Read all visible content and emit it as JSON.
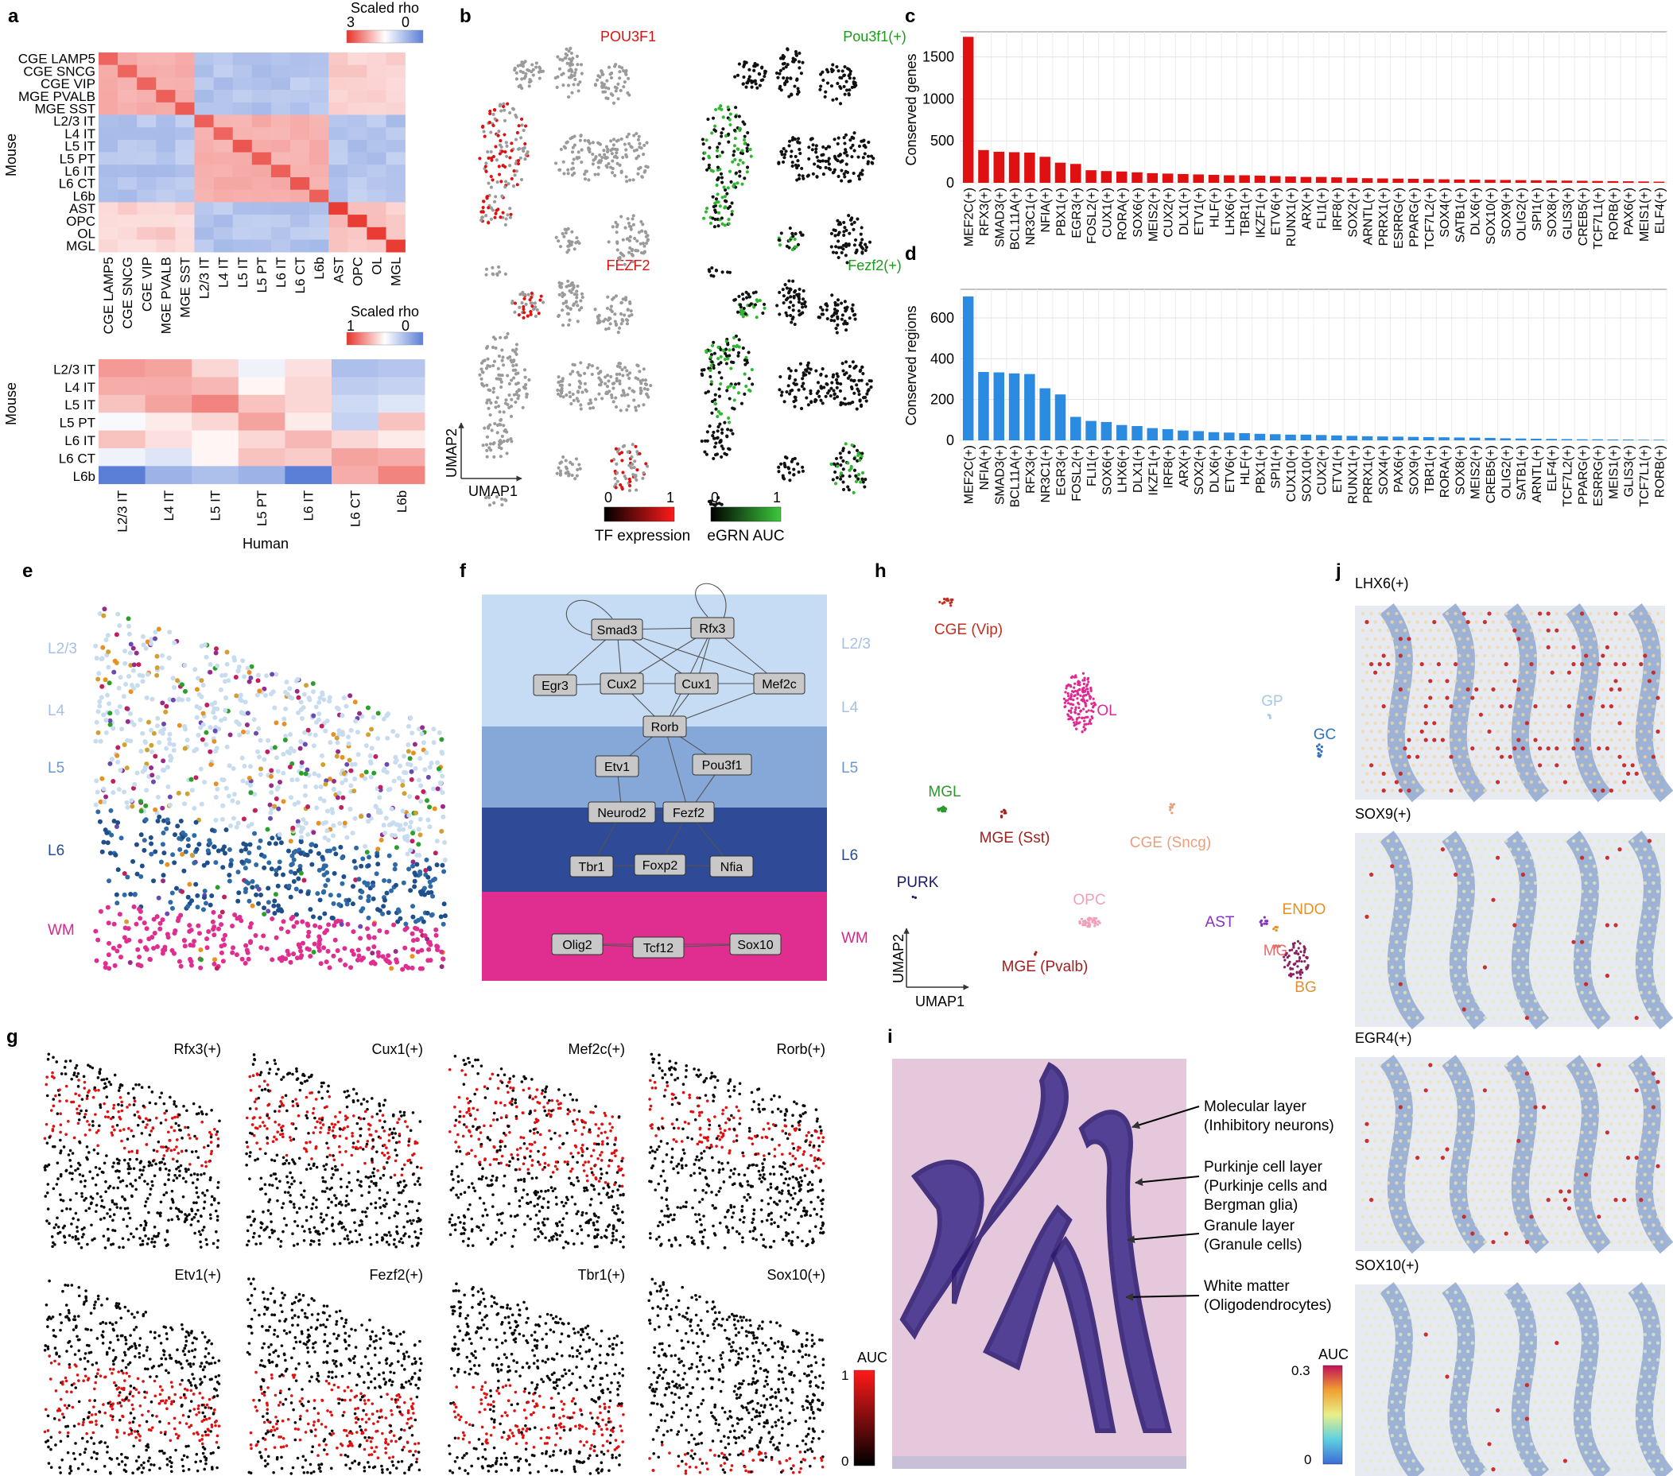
{
  "panels": {
    "a": {
      "letter": "a",
      "colorbar1": {
        "title": "Scaled rho",
        "max": "3",
        "min": "0"
      },
      "colorbar2": {
        "title": "Scaled rho",
        "max": "1",
        "min": "0"
      },
      "rows1": [
        "CGE LAMP5",
        "CGE SNCG",
        "CGE VIP",
        "MGE PVALB",
        "MGE SST",
        "L2/3 IT",
        "L4 IT",
        "L5 IT",
        "L5 PT",
        "L6 IT",
        "L6 CT",
        "L6b",
        "AST",
        "OPC",
        "OL",
        "MGL"
      ],
      "cols1": [
        "CGE LAMP5",
        "CGE SNCG",
        "CGE VIP",
        "MGE PVALB",
        "MGE SST",
        "L2/3 IT",
        "L4 IT",
        "L5 IT",
        "L5 PT",
        "L6 IT",
        "L6 CT",
        "L6b",
        "AST",
        "OPC",
        "OL",
        "MGL"
      ],
      "rows2": [
        "L2/3 IT",
        "L4 IT",
        "L5 IT",
        "L5 PT",
        "L6 IT",
        "L6 CT",
        "L6b"
      ],
      "cols2": [
        "L2/3 IT",
        "L4 IT",
        "L5 IT",
        "L5 PT",
        "L6 IT",
        "L6 CT",
        "L6b"
      ],
      "ylabel": "Mouse",
      "xlabel": "Human"
    },
    "b": {
      "letter": "b",
      "titles": [
        "POU3F1",
        "Pou3f1(+)",
        "FEZF2",
        "Fezf2(+)"
      ],
      "umap_x": "UMAP1",
      "umap_y": "UMAP2",
      "legend1": {
        "min": "0",
        "max": "1",
        "label": "TF expression"
      },
      "legend2": {
        "min": "0",
        "max": "1",
        "label": "eGRN AUC"
      }
    },
    "c": {
      "letter": "c",
      "ylabel": "Conserved genes",
      "yticks": [
        "0",
        "500",
        "1000",
        "1500"
      ]
    },
    "d": {
      "letter": "d",
      "ylabel": "Conserved regions",
      "yticks": [
        "0",
        "200",
        "400",
        "600"
      ]
    },
    "e": {
      "letter": "e",
      "layers": [
        "L2/3",
        "L4",
        "L5",
        "L6",
        "WM"
      ]
    },
    "f": {
      "letter": "f",
      "layers": [
        "L2/3",
        "L4",
        "L5",
        "L6",
        "WM"
      ],
      "nodes": [
        "Smad3",
        "Rfx3",
        "Egr3",
        "Cux2",
        "Cux1",
        "Mef2c",
        "Rorb",
        "Etv1",
        "Pou3f1",
        "Neurod2",
        "Fezf2",
        "Tbr1",
        "Foxp2",
        "Nfia",
        "Olig2",
        "Tcf12",
        "Sox10"
      ]
    },
    "g": {
      "letter": "g",
      "titles": [
        "Rfx3(+)",
        "Cux1(+)",
        "Mef2c(+)",
        "Rorb(+)",
        "Etv1(+)",
        "Fezf2(+)",
        "Tbr1(+)",
        "Sox10(+)"
      ],
      "legend": {
        "title": "AUC",
        "max": "1",
        "min": "0"
      }
    },
    "h": {
      "letter": "h",
      "labels": [
        "CGE (Vip)",
        "OL",
        "GP",
        "GC",
        "MGL",
        "MGE (Sst)",
        "CGE (Sncg)",
        "PURK",
        "OPC",
        "AST",
        "ENDO",
        "MG",
        "BG",
        "MGE (Pvalb)"
      ],
      "umap_x": "UMAP1",
      "umap_y": "UMAP2"
    },
    "i": {
      "letter": "i",
      "annotations": [
        "Molecular layer",
        "(Inhibitory neurons)",
        "Purkinje cell layer",
        "(Purkinje cells and",
        "Bergman glia)",
        "Granule layer",
        "(Granule cells)",
        "White matter",
        "(Oligodendrocytes)"
      ]
    },
    "j": {
      "letter": "j",
      "titles": [
        "LHX6(+)",
        "SOX9(+)",
        "EGR4(+)",
        "SOX10(+)"
      ],
      "legend": {
        "title": "AUC",
        "max": "0.3",
        "min": "0"
      }
    }
  },
  "chart_data": [
    {
      "type": "bar",
      "panel": "c",
      "title": "",
      "ylabel": "Conserved genes",
      "ylim": [
        0,
        1800
      ],
      "color": "#e01010",
      "categories": [
        "MEF2C(+)",
        "RFX3(+)",
        "SMAD3(+)",
        "BCL11A(+)",
        "NR3C1(+)",
        "NFIA(+)",
        "PBX1(+)",
        "EGR3(+)",
        "FOSL2(+)",
        "CUX1(+)",
        "RORA(+)",
        "SOX6(+)",
        "MEIS2(+)",
        "CUX2(+)",
        "DLX1(+)",
        "ETV1(+)",
        "HLF(+)",
        "LHX6(+)",
        "TBR1(+)",
        "IKZF1(+)",
        "ETV6(+)",
        "RUNX1(+)",
        "ARX(+)",
        "FLI1(+)",
        "IRF8(+)",
        "SOX2(+)",
        "ARNTL(+)",
        "PRRX1(+)",
        "ESRRG(+)",
        "PPARG(+)",
        "TCF7L2(+)",
        "SOX4(+)",
        "SATB1(+)",
        "DLX6(+)",
        "SOX10(+)",
        "SOX9(+)",
        "OLIG2(+)",
        "SPI1(+)",
        "SOX8(+)",
        "GLIS3(+)",
        "CREB5(+)",
        "TCF7L1(+)",
        "RORB(+)",
        "PAX6(+)",
        "MEIS1(+)",
        "ELF4(+)"
      ],
      "values": [
        1740,
        390,
        370,
        365,
        360,
        310,
        240,
        225,
        150,
        140,
        135,
        125,
        115,
        110,
        105,
        100,
        95,
        90,
        90,
        85,
        80,
        75,
        70,
        70,
        65,
        60,
        55,
        52,
        50,
        48,
        45,
        42,
        40,
        38,
        36,
        34,
        32,
        30,
        28,
        26,
        24,
        22,
        20,
        18,
        16,
        14
      ]
    },
    {
      "type": "bar",
      "panel": "d",
      "title": "",
      "ylabel": "Conserved regions",
      "ylim": [
        0,
        740
      ],
      "color": "#2b8be0",
      "categories": [
        "MEF2C(+)",
        "NFIA(+)",
        "SMAD3(+)",
        "BCL11A(+)",
        "RFX3(+)",
        "NR3C1(+)",
        "EGR3(+)",
        "FOSL2(+)",
        "FLI1(+)",
        "SOX6(+)",
        "LHX6(+)",
        "DLX1(+)",
        "IKZF1(+)",
        "IRF8(+)",
        "ARX(+)",
        "SOX2(+)",
        "DLX6(+)",
        "ETV6(+)",
        "HLF(+)",
        "PBX1(+)",
        "SPI1(+)",
        "CUX10(+)",
        "SOX10(+)",
        "CUX2(+)",
        "ETV1(+)",
        "RUNX1(+)",
        "PRRX1(+)",
        "SOX4(+)",
        "PAX6(+)",
        "SOX9(+)",
        "TBR1(+)",
        "RORA(+)",
        "SOX8(+)",
        "MEIS2(+)",
        "CREB5(+)",
        "OLIG2(+)",
        "SATB1(+)",
        "ARNTL(+)",
        "ELF4(+)",
        "TCF7L2(+)",
        "PPARG(+)",
        "ESRRG(+)",
        "MEIS1(+)",
        "GLIS3(+)",
        "TCF7L1(+)",
        "RORB(+)"
      ],
      "values": [
        705,
        335,
        333,
        328,
        325,
        255,
        225,
        115,
        95,
        90,
        75,
        70,
        60,
        55,
        48,
        45,
        40,
        38,
        35,
        32,
        30,
        28,
        28,
        26,
        24,
        22,
        20,
        19,
        18,
        17,
        16,
        15,
        14,
        13,
        12,
        10,
        9,
        8,
        7,
        6,
        5,
        5,
        4,
        4,
        3,
        3
      ]
    }
  ]
}
